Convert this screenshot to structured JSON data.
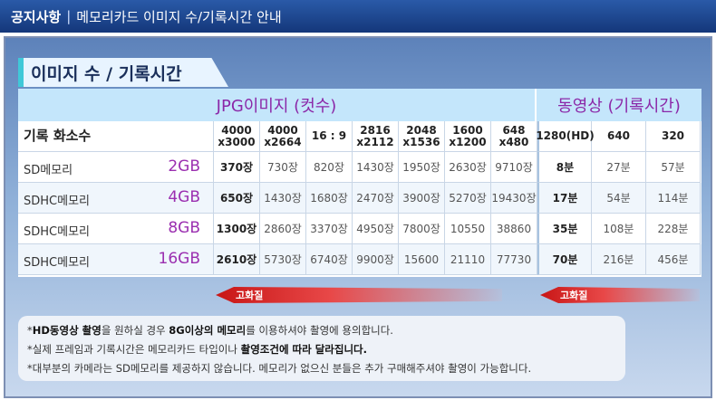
{
  "header": {
    "title_strong": "공지사항",
    "separator": "|",
    "title_rest": "메모리카드 이미지 수/기록시간 안내"
  },
  "section": {
    "tab_label": "이미지 수 / 기록시간"
  },
  "table": {
    "category_jpg": "JPG이미지 (컷수)",
    "category_video": "동영상 (기록시간)",
    "header_label": "기록 화소수",
    "res_headers": [
      "4000\nx3000",
      "4000\nx2664",
      "16 : 9",
      "2816\nx2112",
      "2048\nx1536",
      "1600\nx1200",
      "648\nx480"
    ],
    "video_headers": [
      "1280(HD)",
      "640",
      "320"
    ],
    "rows": [
      {
        "name": "SD메모리",
        "capacity": "2GB",
        "jpg": [
          "370장",
          "730장",
          "820장",
          "1430장",
          "1950장",
          "2630장",
          "9710장"
        ],
        "video": [
          "8분",
          "27분",
          "57분"
        ]
      },
      {
        "name": "SDHC메모리",
        "capacity": "4GB",
        "jpg": [
          "650장",
          "1430장",
          "1680장",
          "2470장",
          "3900장",
          "5270장",
          "19430장"
        ],
        "video": [
          "17분",
          "54분",
          "114분"
        ]
      },
      {
        "name": "SDHC메모리",
        "capacity": "8GB",
        "jpg": [
          "1300장",
          "2860장",
          "3370장",
          "4950장",
          "7800장",
          "10550",
          "38860"
        ],
        "video": [
          "35분",
          "108분",
          "228분"
        ]
      },
      {
        "name": "SDHC메모리",
        "capacity": "16GB",
        "jpg": [
          "2610장",
          "5730장",
          "6740장",
          "9900장",
          "15600",
          "21110",
          "77730"
        ],
        "video": [
          "70분",
          "216분",
          "456분"
        ]
      }
    ]
  },
  "arrows": {
    "left_label": "고화질",
    "right_label": "고화질"
  },
  "notes": {
    "line1_pre": "*",
    "line1_b1": "HD동영상 촬영",
    "line1_mid": "을 원하실 경우 ",
    "line1_b2": "8G이상의 메모리",
    "line1_post": "를 이용하셔야 촬영에 용의합니다.",
    "line2_pre": "*실제 프레임과 기록시간은 메모리카드 타입이나 ",
    "line2_b": "촬영조건에 따라 달라집니다.",
    "line3": "*대부분의 카메라는 SD메모리를 제공하지 않습니다. 메모리가 없으신 분들은 추가 구매해주셔야 촬영이 가능합니다."
  },
  "colors": {
    "header_bg": "#1e4a94",
    "category_bg": "#c4e6fb",
    "category_text": "#8b28a8",
    "arrow_red": "#c81616"
  }
}
